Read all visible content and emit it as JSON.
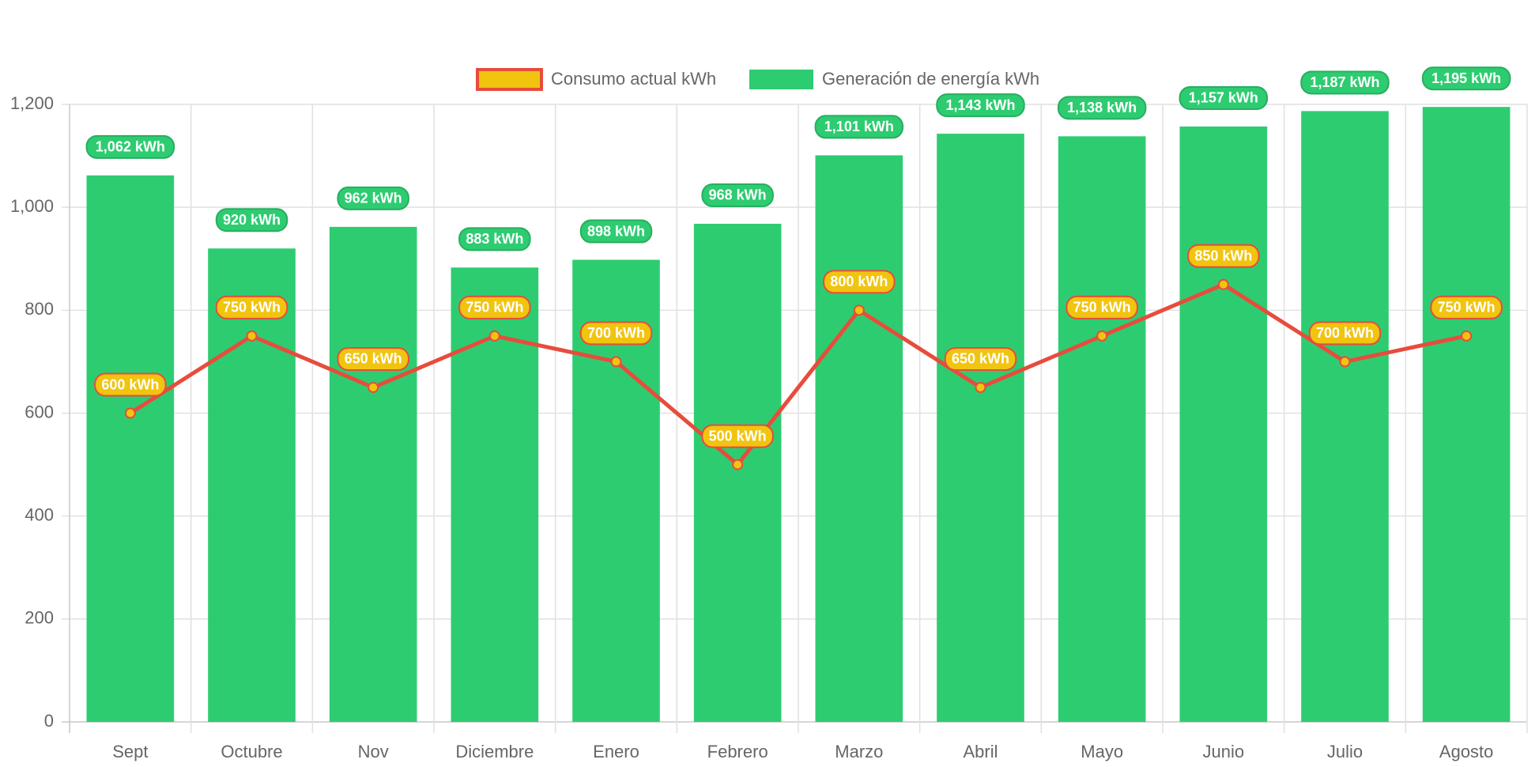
{
  "chart_data": {
    "type": "bar",
    "title": "",
    "xlabel": "",
    "ylabel": "",
    "ylim": [
      0,
      1200
    ],
    "yticks": [
      0,
      200,
      400,
      600,
      800,
      1000,
      1200
    ],
    "ytick_labels": [
      "0",
      "200",
      "400",
      "600",
      "800",
      "1,000",
      "1,200"
    ],
    "grid": true,
    "legend_position": "top-center",
    "categories": [
      "Sept",
      "Octubre",
      "Nov",
      "Diciembre",
      "Enero",
      "Febrero",
      "Marzo",
      "Abril",
      "Mayo",
      "Junio",
      "Julio",
      "Agosto"
    ],
    "series": [
      {
        "name": "Consumo actual kWh",
        "type": "line",
        "line_color": "#e74c3c",
        "fill_color": "#f1c40f",
        "values": [
          600,
          750,
          650,
          750,
          700,
          500,
          800,
          650,
          750,
          850,
          700,
          750
        ],
        "data_labels": [
          "600 kWh",
          "750 kWh",
          "650 kWh",
          "750 kWh",
          "700 kWh",
          "500 kWh",
          "800 kWh",
          "650 kWh",
          "750 kWh",
          "850 kWh",
          "700 kWh",
          "750 kWh"
        ]
      },
      {
        "name": "Generación de energía kWh",
        "type": "bar",
        "color": "#2ecc71",
        "values": [
          1062,
          920,
          962,
          883,
          898,
          968,
          1101,
          1143,
          1138,
          1157,
          1187,
          1195
        ],
        "data_labels": [
          "1,062 kWh",
          "920 kWh",
          "962 kWh",
          "883 kWh",
          "898 kWh",
          "968 kWh",
          "1,101 kWh",
          "1,143 kWh",
          "1,138 kWh",
          "1,157 kWh",
          "1,187 kWh",
          "1,195 kWh"
        ]
      }
    ]
  }
}
